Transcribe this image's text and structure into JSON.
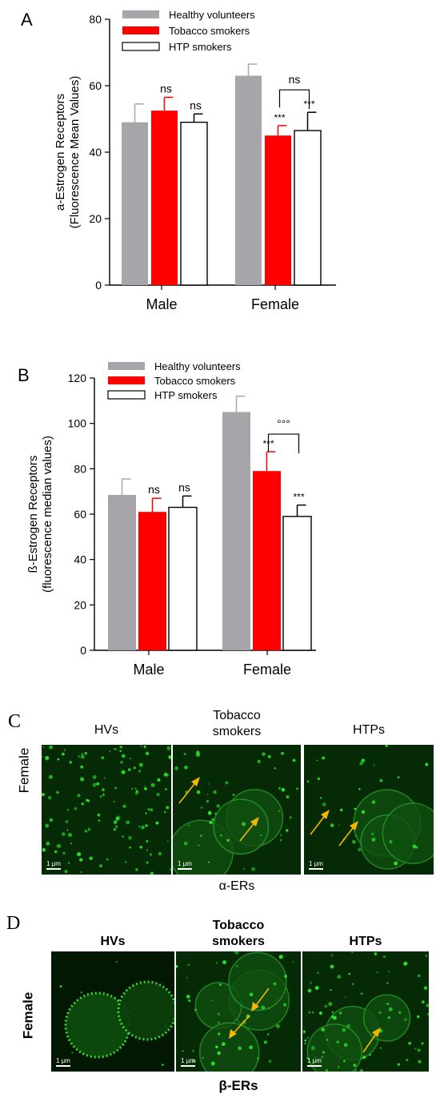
{
  "panels": {
    "A": "A",
    "B": "B",
    "C": "C",
    "D": "D"
  },
  "colors": {
    "healthy": "#a6a6aa",
    "tobacco": "#ff0000",
    "htp": "#ffffff",
    "axis": "#000000",
    "fluorescence": "#2ee82e",
    "arrow": "#f5b800"
  },
  "chart_data": [
    {
      "type": "bar",
      "panel": "A",
      "ylabel": "a-Estrogen Receptors",
      "ylabel2": "(Fluorescence Mean Values)",
      "categories": [
        "Male",
        "Female"
      ],
      "ylim": [
        0,
        80
      ],
      "yticks": [
        "0",
        "20",
        "40",
        "60",
        "80"
      ],
      "legend_position": "top",
      "series": [
        {
          "name": "Healthy volunteers",
          "values": [
            49,
            63
          ],
          "errors": [
            5.5,
            3.5
          ]
        },
        {
          "name": "Tobacco smokers",
          "values": [
            52.5,
            45
          ],
          "errors": [
            4,
            3
          ]
        },
        {
          "name": "HTP smokers",
          "values": [
            49,
            46.5
          ],
          "errors": [
            2.5,
            5.5
          ]
        }
      ],
      "annotations": [
        {
          "category": 0,
          "series": 1,
          "text": "ns"
        },
        {
          "category": 0,
          "series": 2,
          "text": "ns"
        },
        {
          "category": 1,
          "series": 1,
          "text": "***"
        },
        {
          "category": 1,
          "series": 2,
          "text": "***"
        }
      ],
      "bracket": {
        "category": 1,
        "from_series": 1,
        "to_series": 2,
        "text": "ns"
      }
    },
    {
      "type": "bar",
      "panel": "B",
      "ylabel": "ß-Estrogen Receptors",
      "ylabel2": "(fluorescence median values)",
      "categories": [
        "Male",
        "Female"
      ],
      "ylim": [
        0,
        120
      ],
      "yticks": [
        "0",
        "20",
        "40",
        "60",
        "80",
        "100",
        "120"
      ],
      "legend_position": "top",
      "series": [
        {
          "name": "Healthy volunteers",
          "values": [
            68.5,
            105
          ],
          "errors": [
            7,
            7
          ]
        },
        {
          "name": "Tobacco smokers",
          "values": [
            61,
            79
          ],
          "errors": [
            6,
            8.5
          ]
        },
        {
          "name": "HTP smokers",
          "values": [
            63,
            59
          ],
          "errors": [
            5,
            5
          ]
        }
      ],
      "annotations": [
        {
          "category": 0,
          "series": 1,
          "text": "ns"
        },
        {
          "category": 0,
          "series": 2,
          "text": "ns"
        },
        {
          "category": 1,
          "series": 1,
          "text": "***"
        },
        {
          "category": 1,
          "series": 2,
          "text": "***"
        }
      ],
      "bracket": {
        "category": 1,
        "from_series": 1,
        "to_series": 2,
        "text": "°°°"
      }
    }
  ],
  "micro_c": {
    "columns": [
      "HVs",
      "Tobacco\nsmokers",
      "HTPs"
    ],
    "row_label": "Female",
    "bottom_label": "α-ERs",
    "scale": "1 μm"
  },
  "micro_d": {
    "columns": [
      "HVs",
      "Tobacco\nsmokers",
      "HTPs"
    ],
    "row_label": "Female",
    "bottom_label": "β-ERs",
    "scale": "1 μm"
  }
}
